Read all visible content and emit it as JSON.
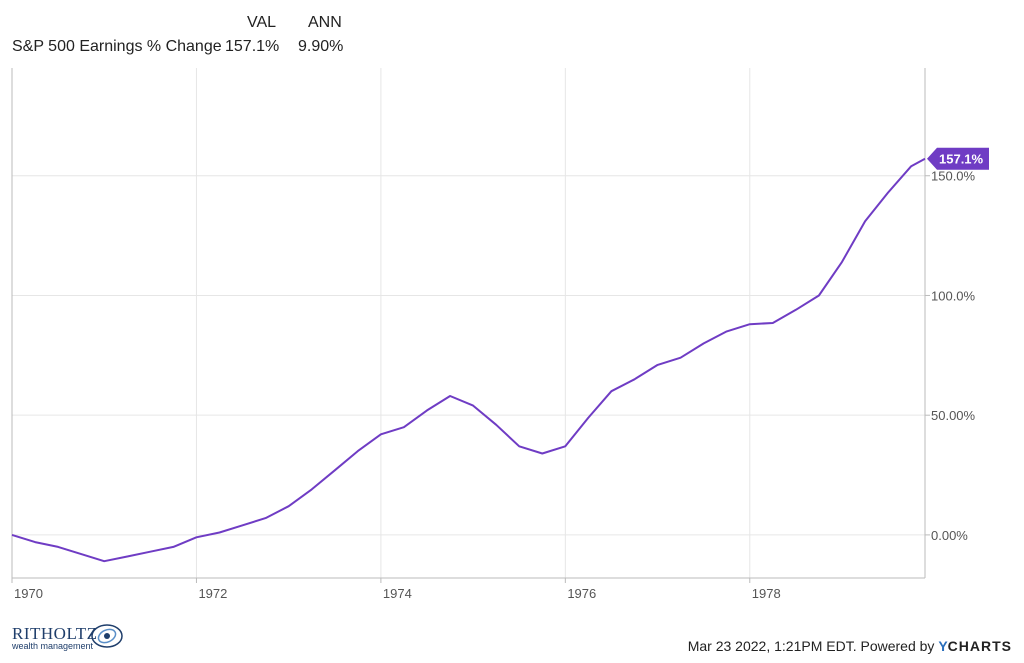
{
  "legend": {
    "header_val": "VAL",
    "header_ann": "ANN",
    "series_name": "S&P 500 Earnings % Change",
    "val": "157.1%",
    "ann": "9.90%"
  },
  "footer": {
    "logo_name": "RITHOLTZ",
    "logo_tagline": "wealth management",
    "timestamp": "Mar 23 2022, 1:21PM EDT.",
    "powered_by": "Powered by",
    "brand_y": "Y",
    "brand_rest": "CHARTS"
  },
  "colors": {
    "line": "#6f3cc4",
    "grid": "#e6e6e6",
    "axis": "#bbbbbb",
    "label_bg": "#6f3cc4"
  },
  "chart_data": {
    "type": "line",
    "title": "",
    "xlabel": "",
    "ylabel": "",
    "xlim": [
      1970.0,
      1979.9
    ],
    "ylim": [
      -18,
      195
    ],
    "yticks": [
      0,
      50,
      100,
      150
    ],
    "ytick_labels": [
      "0.00%",
      "50.00%",
      "100.0%",
      "150.0%"
    ],
    "xticks": [
      1970,
      1972,
      1974,
      1976,
      1978
    ],
    "xtick_labels": [
      "1970",
      "1972",
      "1974",
      "1976",
      "1978"
    ],
    "last_value_label": "157.1%",
    "series": [
      {
        "name": "S&P 500 Earnings % Change",
        "x": [
          1970.0,
          1970.25,
          1970.5,
          1970.75,
          1971.0,
          1971.25,
          1971.5,
          1971.75,
          1972.0,
          1972.25,
          1972.5,
          1972.75,
          1973.0,
          1973.25,
          1973.5,
          1973.75,
          1974.0,
          1974.25,
          1974.5,
          1974.75,
          1975.0,
          1975.25,
          1975.5,
          1975.75,
          1976.0,
          1976.25,
          1976.5,
          1976.75,
          1977.0,
          1977.25,
          1977.5,
          1977.75,
          1978.0,
          1978.25,
          1978.5,
          1978.75,
          1979.0,
          1979.25,
          1979.5,
          1979.75,
          1979.9
        ],
        "y": [
          0,
          -3,
          -5,
          -8,
          -11,
          -9,
          -7,
          -5,
          -1,
          1,
          4,
          7,
          12,
          19,
          27,
          35,
          42,
          45,
          52,
          58,
          54,
          46,
          37,
          34,
          37,
          49,
          60,
          65,
          71,
          74,
          80,
          85,
          88,
          88.5,
          94,
          100,
          114,
          131,
          143,
          154,
          157.1
        ]
      }
    ]
  }
}
